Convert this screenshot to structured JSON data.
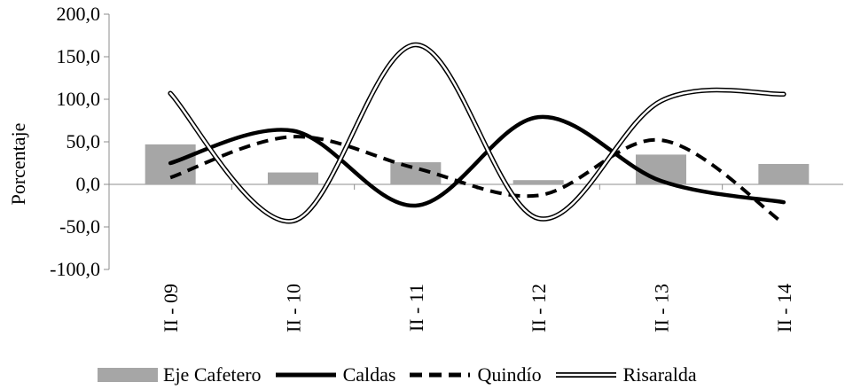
{
  "chart_data": {
    "type": "bar+line",
    "ylabel": "Porcentaje",
    "ylim": [
      -100,
      200
    ],
    "yticks": [
      "200,0",
      "150,0",
      "100,0",
      "50,0",
      "0,0",
      "-50,0",
      "-100,0"
    ],
    "ytick_values": [
      200,
      150,
      100,
      50,
      0,
      -50,
      -100
    ],
    "categories": [
      "II - 09",
      "II - 10",
      "II - 11",
      "II - 12",
      "II - 13",
      "II - 14"
    ],
    "series": [
      {
        "name": "Eje Cafetero",
        "type": "bar",
        "color": "#a6a6a6",
        "values": [
          47,
          14,
          26,
          5,
          35,
          24
        ]
      },
      {
        "name": "Caldas",
        "type": "line",
        "style": "solid-thick",
        "color": "#000000",
        "values": [
          25,
          63,
          -25,
          79,
          4,
          -21
        ]
      },
      {
        "name": "Quindío",
        "type": "line",
        "style": "dashed",
        "color": "#000000",
        "values": [
          8,
          56,
          19,
          -13,
          52,
          -46
        ]
      },
      {
        "name": "Risaralda",
        "type": "line",
        "style": "double",
        "color": "#000000",
        "values": [
          107,
          -43,
          164,
          -40,
          98,
          106
        ]
      }
    ],
    "legend_position": "bottom",
    "grid": false
  }
}
